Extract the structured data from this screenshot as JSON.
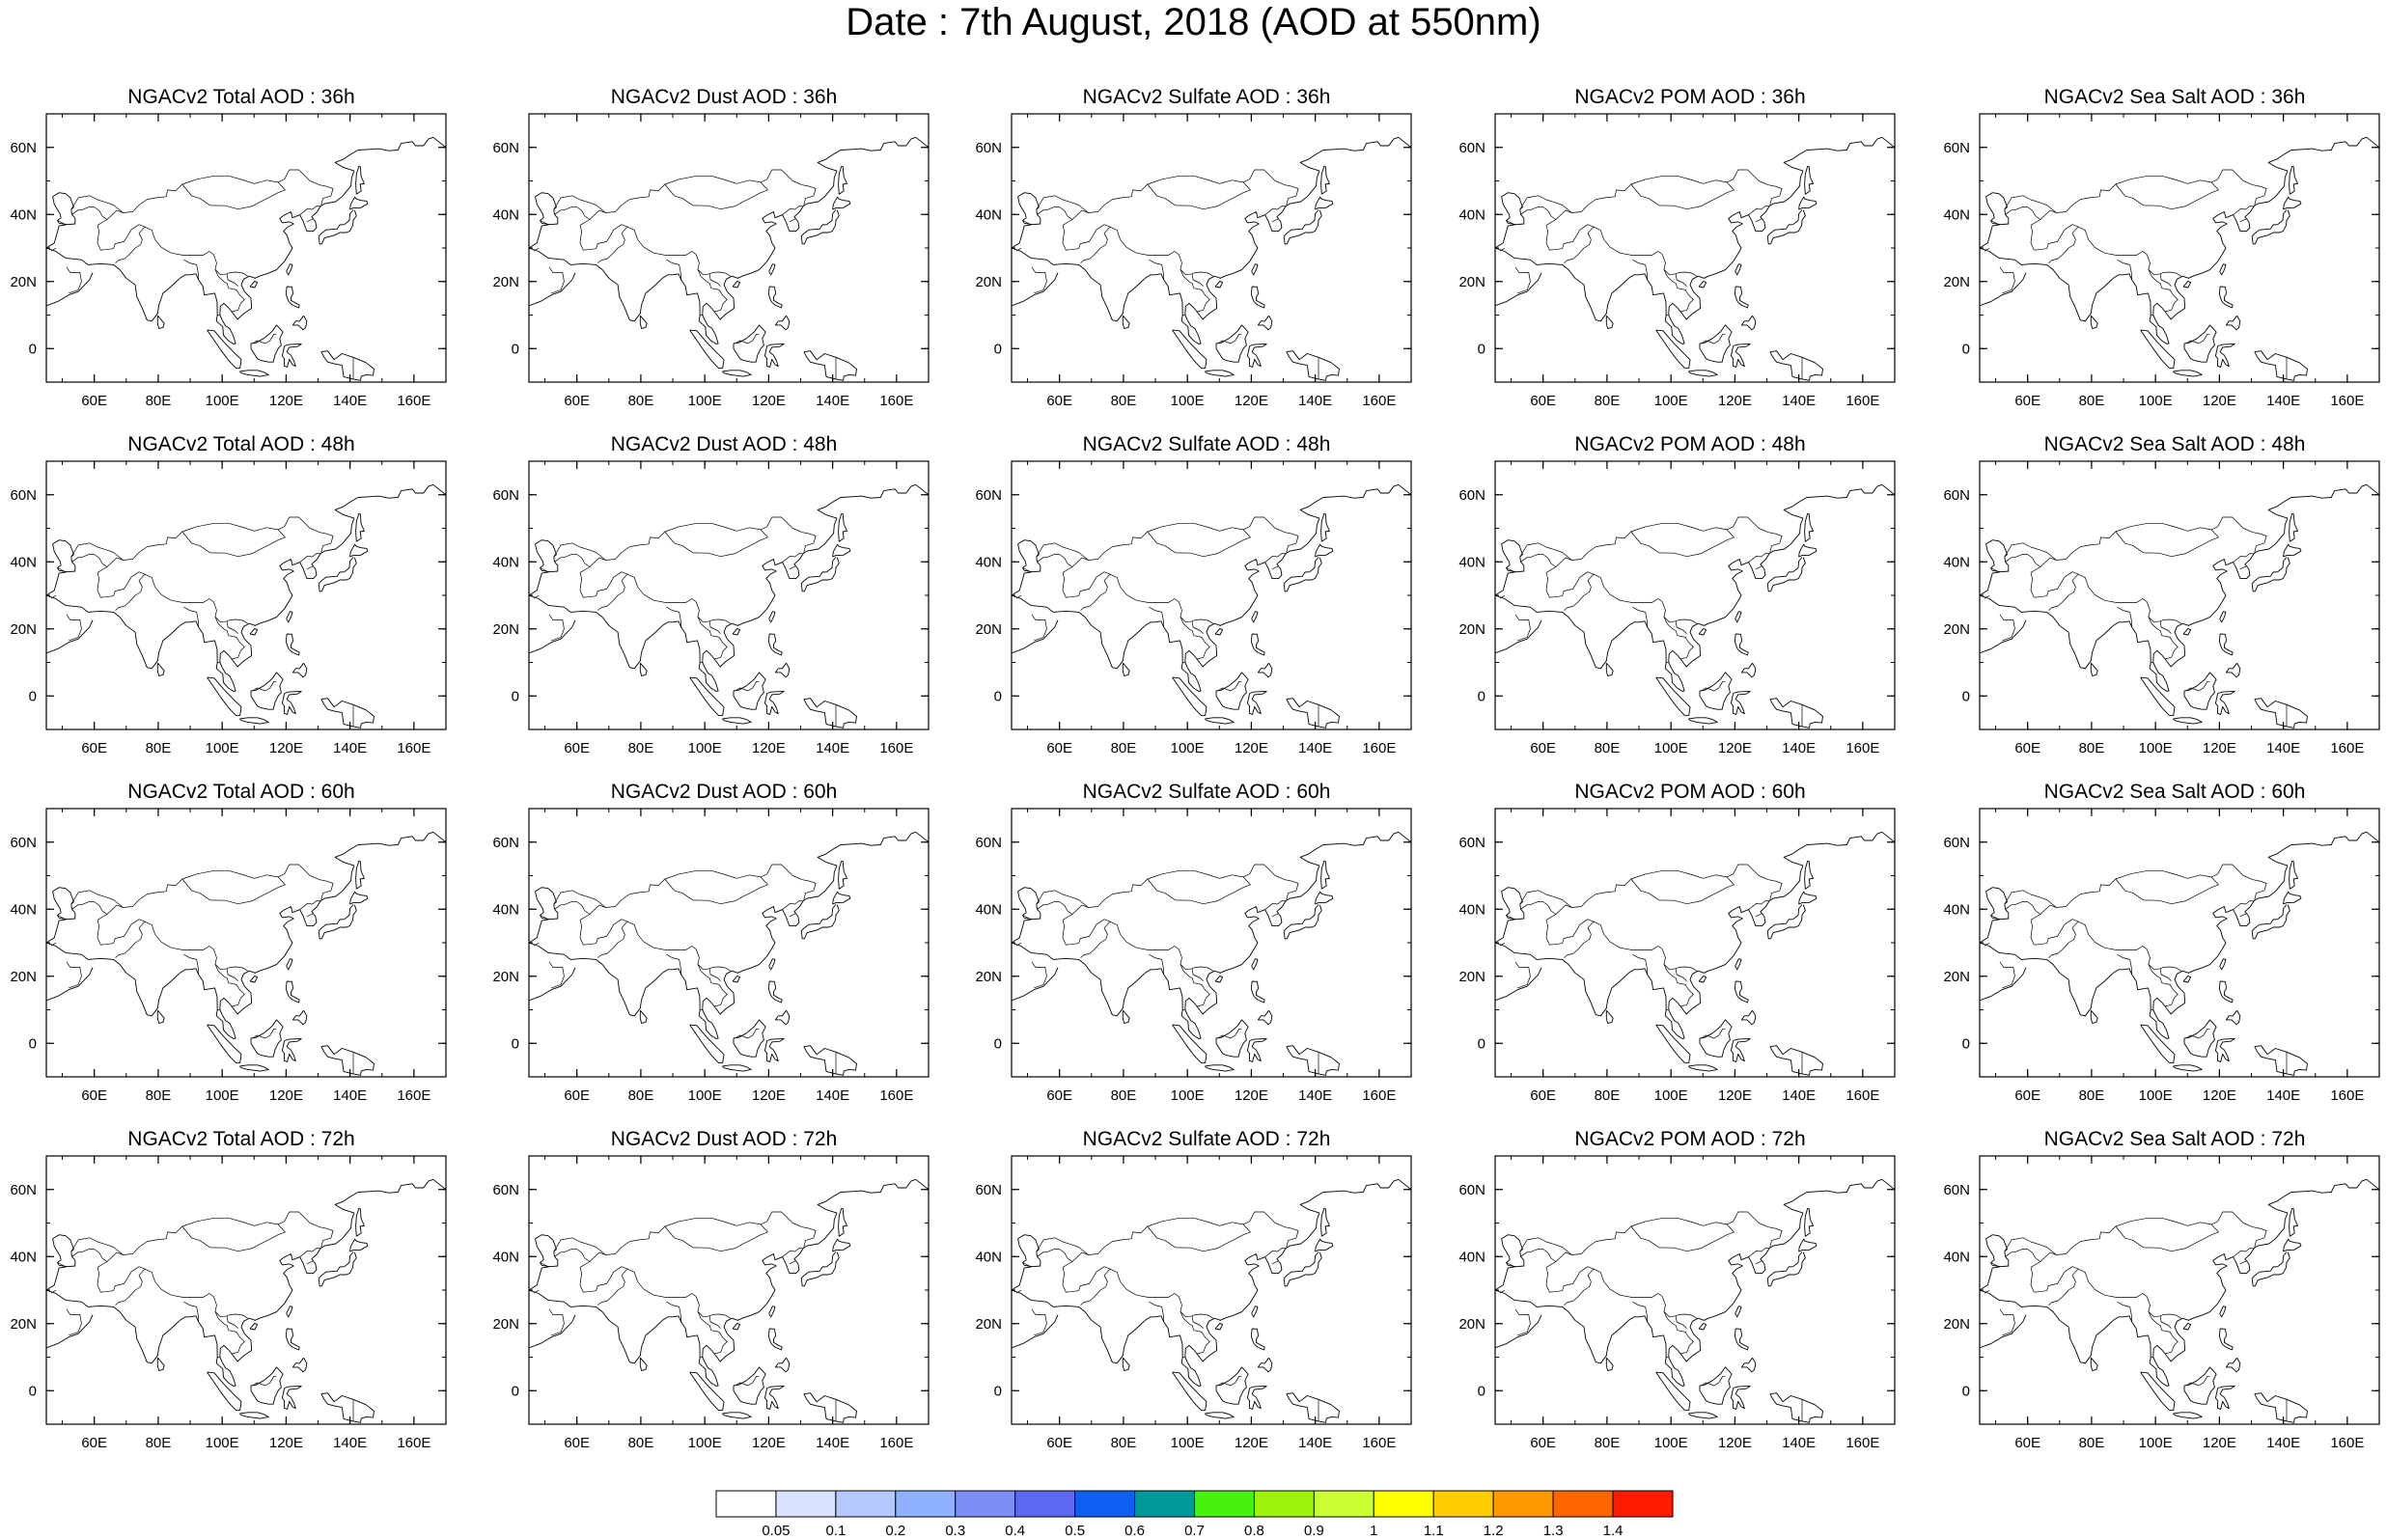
{
  "title": "Date : 7th August, 2018 (AOD at 550nm)",
  "panel_titles": [
    [
      "NGACv2 Total AOD : 36h",
      "NGACv2 Dust AOD : 36h",
      "NGACv2 Sulfate AOD : 36h",
      "NGACv2 POM AOD : 36h",
      "NGACv2 Sea Salt AOD : 36h"
    ],
    [
      "NGACv2 Total AOD : 48h",
      "NGACv2 Dust AOD : 48h",
      "NGACv2 Sulfate AOD : 48h",
      "NGACv2 POM AOD : 48h",
      "NGACv2 Sea Salt AOD : 48h"
    ],
    [
      "NGACv2 Total AOD : 60h",
      "NGACv2 Dust AOD : 60h",
      "NGACv2 Sulfate AOD : 60h",
      "NGACv2 POM AOD : 60h",
      "NGACv2 Sea Salt AOD : 60h"
    ],
    [
      "NGACv2 Total AOD : 72h",
      "NGACv2 Dust AOD : 72h",
      "NGACv2 Sulfate AOD : 72h",
      "NGACv2 POM AOD : 72h",
      "NGACv2 Sea Salt  AOD : 72h"
    ]
  ],
  "map": {
    "lon_range": [
      45,
      170
    ],
    "lat_range": [
      -10,
      70
    ],
    "lon_ticks": [
      "60E",
      "80E",
      "100E",
      "120E",
      "140E",
      "160E"
    ],
    "lon_tick_values": [
      60,
      80,
      100,
      120,
      140,
      160
    ],
    "lat_ticks": [
      "60N",
      "40N",
      "20N",
      "0"
    ],
    "lat_tick_values": [
      60,
      40,
      20,
      0
    ]
  },
  "colorbar": {
    "labels": [
      "0.05",
      "0.1",
      "0.2",
      "0.3",
      "0.4",
      "0.5",
      "0.6",
      "0.7",
      "0.8",
      "0.9",
      "1",
      "1.1",
      "1.2",
      "1.3",
      "1.4"
    ],
    "colors": [
      "#ffffff",
      "#d6e2ff",
      "#b5c9ff",
      "#8fb1fe",
      "#7d8ff7",
      "#5d69f0",
      "#0c5ff0",
      "#009999",
      "#48f20c",
      "#9ff20c",
      "#ccff33",
      "#ffff00",
      "#ffcc00",
      "#ff9900",
      "#ff6600",
      "#ff1a00"
    ]
  }
}
